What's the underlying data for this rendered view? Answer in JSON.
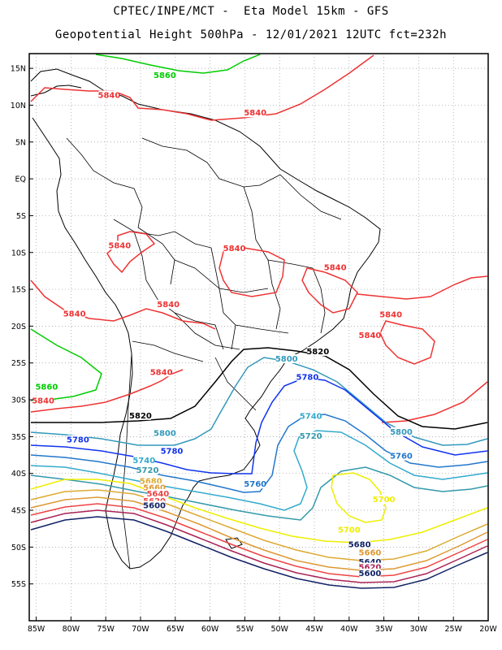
{
  "header": {
    "line1": "CPTEC/INPE/MCT -  Eta Model 15km - GFS",
    "line2": "Geopotential Height 500hPa - 12/01/2021 12UTC fct=232h"
  },
  "map": {
    "lat_range": [
      -60,
      17
    ],
    "lon_range": [
      -86,
      -20
    ],
    "lat_ticks": [
      "15N",
      "10N",
      "5N",
      "EQ",
      "5S",
      "10S",
      "15S",
      "20S",
      "25S",
      "30S",
      "35S",
      "40S",
      "45S",
      "50S",
      "55S"
    ],
    "lon_ticks": [
      "85W",
      "80W",
      "75W",
      "70W",
      "65W",
      "60W",
      "55W",
      "50W",
      "45W",
      "40W",
      "35W",
      "30W",
      "25W",
      "20W"
    ],
    "grid": true,
    "contour_colors": {
      "5860": "#00cc00",
      "5840": "#ee3333",
      "5820": "#000000",
      "5800": "#3399bb",
      "5780": "#1133ee",
      "5760": "#2277cc",
      "5740": "#33aacc",
      "5720": "#3399aa",
      "5700": "#eeee00",
      "5680": "#ddaa33",
      "5660": "#dd9933",
      "5640": "#ee4444",
      "5620": "#aa2255",
      "5600": "#112266"
    },
    "contour_labels": [
      {
        "text": "5860",
        "color": "#00cc00",
        "lon": -66.5,
        "lat": 13.8
      },
      {
        "text": "5840",
        "color": "#ee3333",
        "lon": -74.5,
        "lat": 11.1
      },
      {
        "text": "5840",
        "color": "#ee3333",
        "lon": -53.5,
        "lat": 8.7
      },
      {
        "text": "5840",
        "color": "#ee3333",
        "lon": -73.0,
        "lat": -9.3
      },
      {
        "text": "5840",
        "color": "#ee3333",
        "lon": -56.5,
        "lat": -9.7
      },
      {
        "text": "5840",
        "color": "#ee3333",
        "lon": -42.0,
        "lat": -12.3
      },
      {
        "text": "5840",
        "color": "#ee3333",
        "lon": -66.0,
        "lat": -17.3
      },
      {
        "text": "5840",
        "color": "#ee3333",
        "lon": -79.5,
        "lat": -18.6
      },
      {
        "text": "5840",
        "color": "#ee3333",
        "lon": -34.0,
        "lat": -18.7
      },
      {
        "text": "5840",
        "color": "#ee3333",
        "lon": -37.0,
        "lat": -21.5
      },
      {
        "text": "5840",
        "color": "#ee3333",
        "lon": -67.0,
        "lat": -26.5
      },
      {
        "text": "5860",
        "color": "#00cc00",
        "lon": -83.5,
        "lat": -28.5
      },
      {
        "text": "5840",
        "color": "#ee3333",
        "lon": -84.0,
        "lat": -30.4
      },
      {
        "text": "5820",
        "color": "#000000",
        "lon": -44.5,
        "lat": -23.7
      },
      {
        "text": "5820",
        "color": "#000000",
        "lon": -70.0,
        "lat": -32.4
      },
      {
        "text": "5800",
        "color": "#3399bb",
        "lon": -49.0,
        "lat": -24.7
      },
      {
        "text": "5800",
        "color": "#3399bb",
        "lon": -66.5,
        "lat": -34.8
      },
      {
        "text": "5800",
        "color": "#3399bb",
        "lon": -32.5,
        "lat": -34.6
      },
      {
        "text": "5780",
        "color": "#1133ee",
        "lon": -46.0,
        "lat": -27.2
      },
      {
        "text": "5780",
        "color": "#1133ee",
        "lon": -79.0,
        "lat": -35.7
      },
      {
        "text": "5780",
        "color": "#1133ee",
        "lon": -65.5,
        "lat": -37.2
      },
      {
        "text": "5760",
        "color": "#2277cc",
        "lon": -32.5,
        "lat": -37.9
      },
      {
        "text": "5760",
        "color": "#2277cc",
        "lon": -53.5,
        "lat": -41.7
      },
      {
        "text": "5740",
        "color": "#33aacc",
        "lon": -45.5,
        "lat": -32.5
      },
      {
        "text": "5740",
        "color": "#33aacc",
        "lon": -69.5,
        "lat": -38.5
      },
      {
        "text": "5720",
        "color": "#3399aa",
        "lon": -45.5,
        "lat": -35.2
      },
      {
        "text": "5720",
        "color": "#3399aa",
        "lon": -69.0,
        "lat": -39.8
      },
      {
        "text": "5700",
        "color": "#eeee00",
        "lon": -35.0,
        "lat": -43.8
      },
      {
        "text": "5700",
        "color": "#eeee00",
        "lon": -40.0,
        "lat": -47.9
      },
      {
        "text": "5680",
        "color": "#ddaa33",
        "lon": -68.5,
        "lat": -41.3
      },
      {
        "text": "5680",
        "color": "#112266",
        "lon": -38.5,
        "lat": -49.9
      },
      {
        "text": "5660",
        "color": "#dd9933",
        "lon": -68.0,
        "lat": -42.2
      },
      {
        "text": "5660",
        "color": "#dd9933",
        "lon": -37.0,
        "lat": -51.0
      },
      {
        "text": "5640",
        "color": "#ee4444",
        "lon": -67.5,
        "lat": -43.0
      },
      {
        "text": "5640",
        "color": "#112266",
        "lon": -37.0,
        "lat": -52.3
      },
      {
        "text": "5620",
        "color": "#ee4444",
        "lon": -68.0,
        "lat": -44.0
      },
      {
        "text": "5620",
        "color": "#aa2255",
        "lon": -37.0,
        "lat": -53.0
      },
      {
        "text": "5600",
        "color": "#112266",
        "lon": -68.0,
        "lat": -44.6
      },
      {
        "text": "5600",
        "color": "#112266",
        "lon": -37.0,
        "lat": -53.8
      }
    ]
  }
}
